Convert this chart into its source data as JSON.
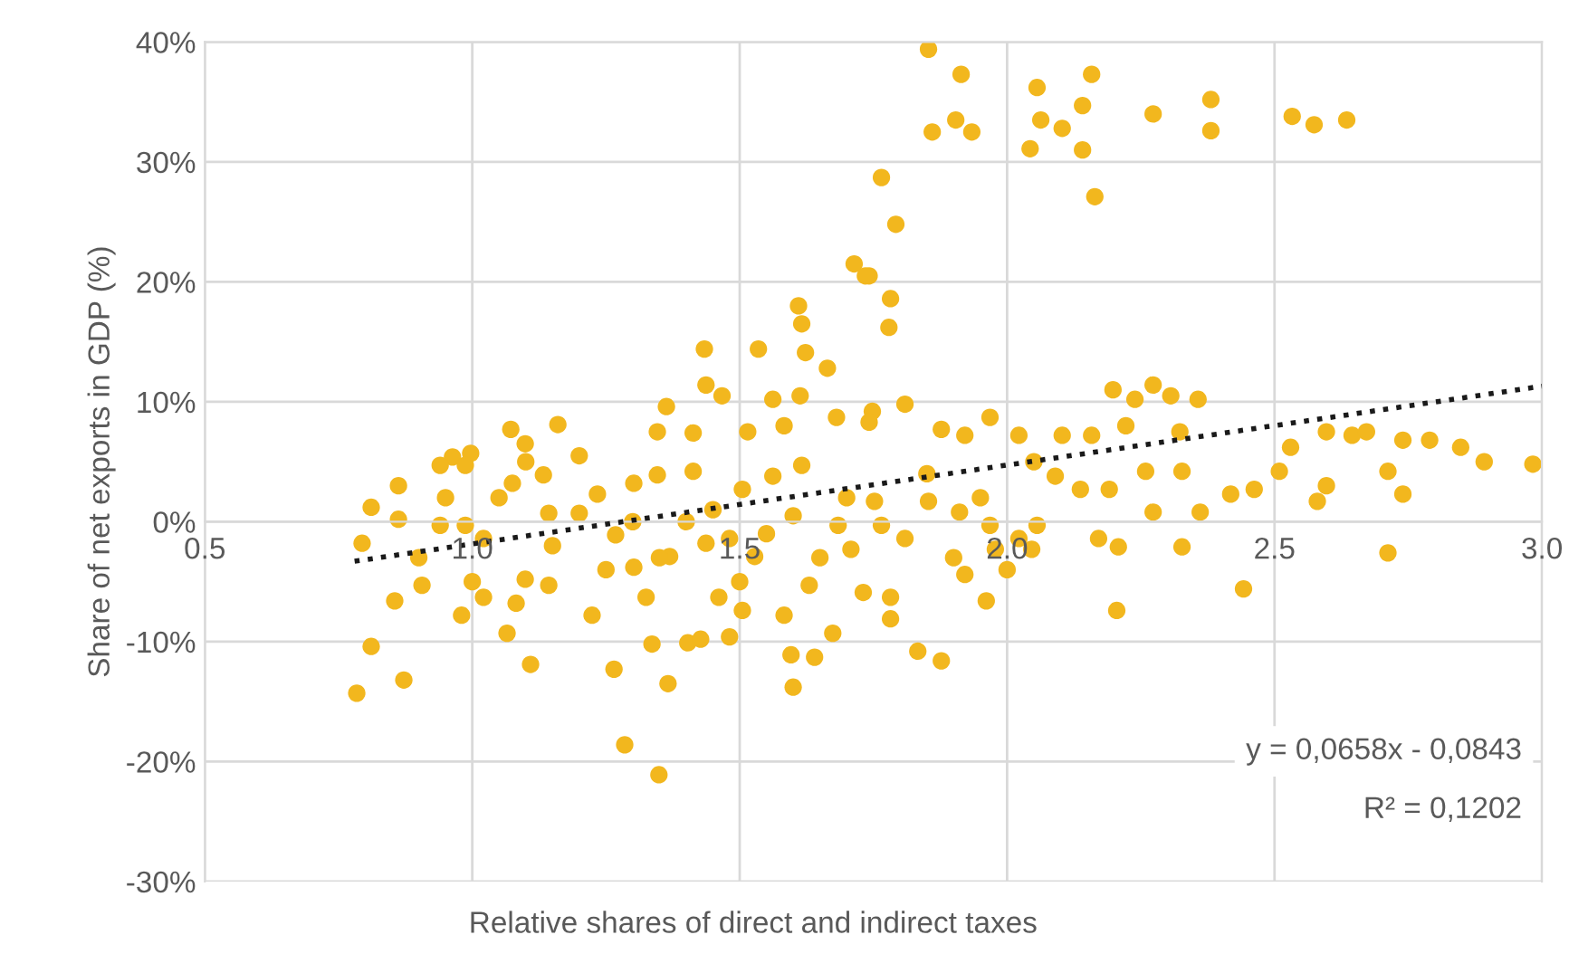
{
  "chart_data": {
    "type": "scatter",
    "xlabel": "Relative shares of direct and indirect taxes",
    "ylabel": "Share of net exports in GDP (%)",
    "xlim": [
      0.5,
      3.0
    ],
    "xticks": [
      0.5,
      {
        "value": 1,
        "label": "1.0"
      },
      1.5,
      {
        "value": 2,
        "label": "2.0"
      },
      2.5,
      {
        "value": 3,
        "label": "3.0"
      }
    ],
    "ylim": [
      -30,
      40
    ],
    "yticks": [
      {
        "value": -30,
        "label": "-30%"
      },
      {
        "value": -20,
        "label": "-20%"
      },
      {
        "value": -10,
        "label": "-10%"
      },
      {
        "value": 0,
        "label": "0%"
      },
      {
        "value": 10,
        "label": "10%"
      },
      {
        "value": 20,
        "label": "20%"
      },
      {
        "value": 30,
        "label": "30%"
      },
      {
        "value": 40,
        "label": "40%"
      }
    ],
    "grid": true,
    "legend": false,
    "series": [
      {
        "color": "#f2b71e",
        "marker": "circle",
        "x": [
          1.853,
          1.914,
          1.86,
          1.904,
          1.934,
          2.056,
          2.063,
          2.103,
          2.043,
          2.141,
          2.158,
          2.141,
          2.164,
          2.273,
          2.381,
          2.381,
          2.533,
          2.574,
          2.635,
          1.765,
          1.792,
          1.742,
          1.782,
          1.779,
          1.714,
          1.735,
          1.61,
          1.616,
          1.434,
          1.535,
          1.623,
          1.664,
          1.437,
          1.467,
          1.363,
          1.562,
          1.613,
          1.16,
          1.072,
          1.099,
          1.346,
          1.413,
          1.515,
          1.583,
          1.681,
          1.748,
          0.963,
          0.997,
          0.811,
          0.794,
          0.862,
          0.862,
          0.784,
          0.811,
          0.872,
          0.855,
          0.906,
          0.94,
          0.987,
          0.94,
          0.987,
          1.021,
          0.98,
          1.021,
          1.075,
          1.133,
          1.065,
          1.109,
          1.082,
          1.099,
          1.143,
          1.143,
          1.2,
          1.234,
          1.268,
          1.224,
          1.265,
          1.285,
          1.349,
          1.336,
          1.366,
          1.403,
          1.427,
          1.481,
          1.325,
          1.302,
          1.346,
          1.413,
          1.302,
          1.369,
          1.437,
          1.481,
          1.528,
          1.505,
          1.562,
          1.616,
          1.461,
          1.505,
          1.583,
          1.596,
          1.6,
          1.64,
          1.63,
          1.674,
          1.684,
          1.708,
          1.731,
          1.752,
          1.742,
          1.782,
          1.782,
          1.833,
          1.877,
          1.921,
          1.961,
          1.765,
          1.809,
          1.853,
          1.911,
          1.968,
          2.022,
          2.056,
          1.978,
          2.046,
          1.968,
          2.022,
          1.809,
          1.877,
          1.921,
          2.103,
          2.158,
          2.09,
          2.137,
          2.171,
          2.208,
          2.205,
          2.198,
          2.239,
          2.273,
          2.306,
          2.357,
          2.222,
          2.323,
          2.191,
          2.259,
          2.327,
          2.273,
          2.327,
          2.361,
          2.418,
          2.462,
          2.509,
          2.53,
          2.442,
          2.597,
          2.645,
          2.672,
          2.58,
          2.597,
          2.712,
          2.74,
          2.74,
          2.79,
          2.848,
          2.892,
          2.983,
          2.712,
          1.4,
          1.45,
          1.55,
          1.6,
          1.35,
          1.5,
          1.65,
          1.7,
          1.85,
          1.9,
          1.95,
          2.0,
          2.05,
          1.3,
          1.25,
          1.15,
          1.05,
          0.95,
          0.9,
          1.0,
          1.1,
          1.2
        ],
        "values": [
          39.4,
          37.3,
          32.5,
          33.5,
          32.5,
          36.2,
          33.5,
          32.8,
          31.1,
          34.7,
          37.3,
          31.0,
          27.1,
          34.0,
          35.2,
          32.6,
          33.8,
          33.1,
          33.5,
          28.7,
          24.8,
          20.5,
          18.6,
          16.2,
          21.5,
          20.5,
          18.0,
          16.5,
          14.4,
          14.4,
          14.1,
          12.8,
          11.4,
          10.5,
          9.6,
          10.2,
          10.5,
          8.1,
          7.7,
          6.5,
          7.5,
          7.4,
          7.5,
          8.0,
          8.7,
          9.2,
          5.4,
          5.7,
          1.2,
          -1.8,
          3.0,
          0.2,
          -14.3,
          -10.4,
          -13.2,
          -6.6,
          -5.3,
          4.7,
          4.7,
          -0.3,
          -0.3,
          -1.4,
          -7.8,
          -6.3,
          3.2,
          3.9,
          -9.3,
          -11.9,
          -6.8,
          -4.8,
          -5.3,
          0.7,
          0.7,
          2.3,
          -1.1,
          -7.8,
          -12.3,
          -18.6,
          -21.1,
          -10.2,
          -13.5,
          -10.1,
          -9.8,
          -9.6,
          -6.3,
          3.2,
          3.9,
          4.2,
          -3.8,
          -2.9,
          -1.8,
          -1.4,
          -2.9,
          2.7,
          3.8,
          4.7,
          -6.3,
          -7.4,
          -7.8,
          -11.1,
          -13.8,
          -11.3,
          -5.3,
          -9.3,
          -0.3,
          -2.3,
          -5.9,
          1.7,
          8.3,
          -6.3,
          -8.1,
          -10.8,
          -11.6,
          -4.4,
          -6.6,
          -0.3,
          -1.4,
          1.7,
          0.8,
          -0.3,
          -1.4,
          -0.3,
          -2.3,
          -2.3,
          8.7,
          7.2,
          9.8,
          7.7,
          7.2,
          7.2,
          7.2,
          3.8,
          2.7,
          -1.4,
          -2.1,
          -7.4,
          11.0,
          10.2,
          11.4,
          10.5,
          10.2,
          8.0,
          7.5,
          2.7,
          4.2,
          4.2,
          0.8,
          -2.1,
          0.8,
          2.3,
          2.7,
          4.2,
          6.2,
          -5.6,
          7.5,
          7.2,
          7.5,
          1.7,
          3.0,
          4.2,
          2.3,
          6.8,
          6.8,
          6.2,
          5.0,
          4.8,
          -2.6,
          0.0,
          1.0,
          -1.0,
          0.5,
          -3.0,
          -5.0,
          -3.0,
          2.0,
          4.0,
          -3.0,
          2.0,
          -4.0,
          5.0,
          0.0,
          -4.0,
          -2.0,
          2.0,
          2.0,
          -3.0,
          -5.0,
          5.0,
          5.5
        ]
      },
      {
        "type": "line",
        "color": "#1a1a1a",
        "marker": "none",
        "line_style": "dotted",
        "x": [
          0.78,
          3.0
        ],
        "values": [
          -3.3,
          11.3
        ]
      }
    ],
    "annotations": [
      "y = 0,0658x - 0,0843",
      "R² = 0,1202"
    ]
  }
}
